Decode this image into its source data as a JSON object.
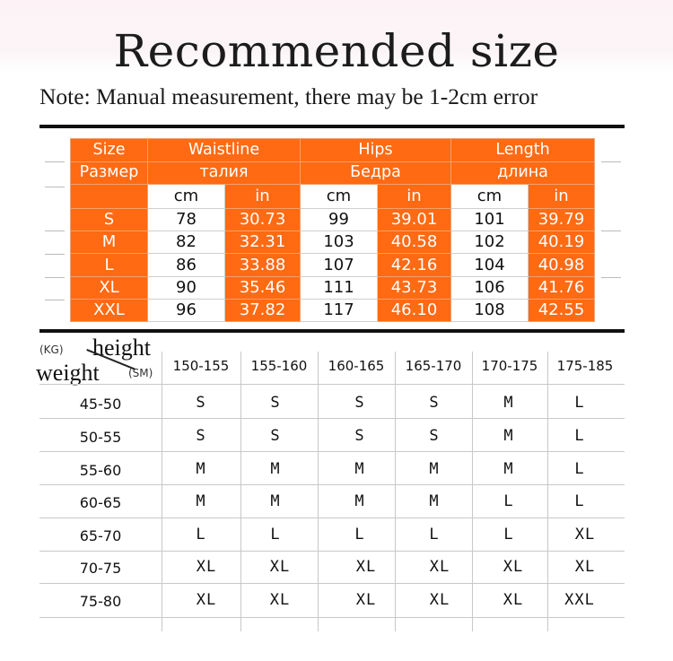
{
  "title": "Recommended size",
  "note": "Note: Manual measurement, there may be 1-2cm error",
  "measurements": {
    "header_en": [
      "Size",
      "Waistline",
      "Hips",
      "Length"
    ],
    "header_ru": [
      "Размер",
      "талия",
      "Бедра",
      "длина"
    ],
    "units": [
      "cm",
      "in",
      "cm",
      "in",
      "cm",
      "in"
    ],
    "rows": [
      {
        "size": "S",
        "values": [
          "78",
          "30.73",
          "99",
          "39.01",
          "101",
          "39.79"
        ]
      },
      {
        "size": "M",
        "values": [
          "82",
          "32.31",
          "103",
          "40.58",
          "102",
          "40.19"
        ]
      },
      {
        "size": "L",
        "values": [
          "86",
          "33.88",
          "107",
          "42.16",
          "104",
          "40.98"
        ]
      },
      {
        "size": "XL",
        "values": [
          "90",
          "35.46",
          "111",
          "43.73",
          "106",
          "41.76"
        ]
      },
      {
        "size": "XXL",
        "values": [
          "96",
          "37.82",
          "117",
          "46.10",
          "108",
          "42.55"
        ]
      }
    ]
  },
  "size_chart": {
    "corner": {
      "kg": "(KG)",
      "height": "height",
      "weight": "weight",
      "sm": "(SM)"
    },
    "heights": [
      "150-155",
      "155-160",
      "160-165",
      "165-170",
      "170-175",
      "175-185"
    ],
    "rows": [
      {
        "weight": "45-50",
        "sizes": [
          "S",
          "S",
          "S",
          "S",
          "M",
          "L"
        ]
      },
      {
        "weight": "50-55",
        "sizes": [
          "S",
          "S",
          "S",
          "S",
          "M",
          "L"
        ]
      },
      {
        "weight": "55-60",
        "sizes": [
          "M",
          "M",
          "M",
          "M",
          "M",
          "L"
        ]
      },
      {
        "weight": "60-65",
        "sizes": [
          "M",
          "M",
          "M",
          "M",
          "L",
          "L"
        ]
      },
      {
        "weight": "65-70",
        "sizes": [
          "L",
          "L",
          "L",
          "L",
          "L",
          "XL"
        ]
      },
      {
        "weight": "70-75",
        "sizes": [
          "XL",
          "XL",
          "XL",
          "XL",
          "XL",
          "XL"
        ]
      },
      {
        "weight": "75-80",
        "sizes": [
          "XL",
          "XL",
          "XL",
          "XL",
          "XL",
          "XXL"
        ]
      }
    ]
  },
  "colors": {
    "accent_orange": "#ff6a13",
    "text": "#111111"
  }
}
